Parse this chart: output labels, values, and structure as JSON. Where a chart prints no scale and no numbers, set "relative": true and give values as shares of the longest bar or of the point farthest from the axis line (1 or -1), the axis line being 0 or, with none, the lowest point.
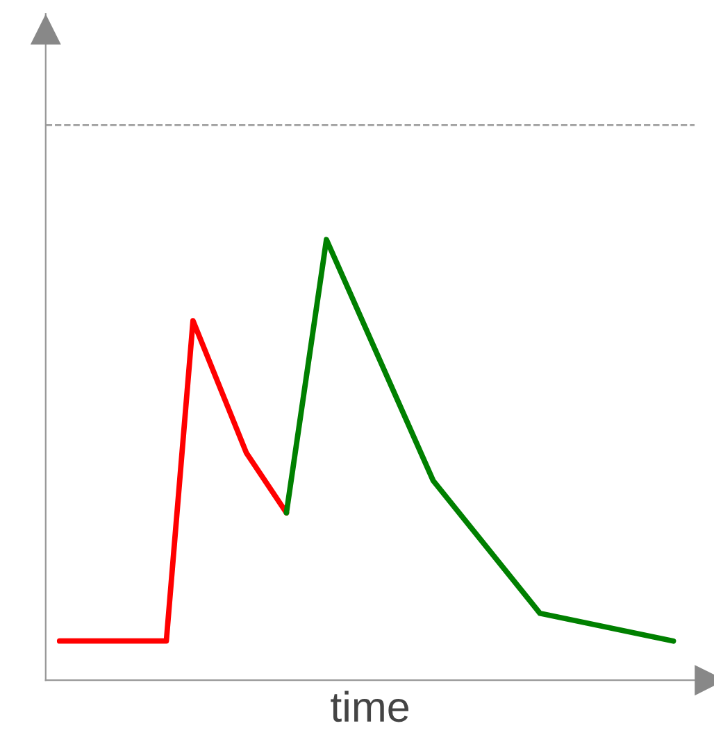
{
  "chart_data": {
    "type": "line",
    "xlabel": "time",
    "relative": true,
    "legend": false,
    "line_style": "solid",
    "marker": "none",
    "categories": [
      null,
      null,
      null,
      null,
      null,
      null,
      null,
      null,
      null,
      null,
      null,
      null,
      null,
      null,
      null,
      null,
      null,
      null,
      null,
      null,
      null,
      null,
      null,
      null,
      null,
      null,
      null,
      null,
      null,
      null,
      null,
      null,
      null,
      null,
      null,
      null,
      null,
      null,
      null,
      null,
      null,
      null,
      null,
      null,
      null,
      null,
      null
    ],
    "series": [
      {
        "color": "#ff0000",
        "values": [
          0.089,
          null,
          null,
          null,
          null,
          null,
          null,
          null,
          0.089,
          null,
          0.816,
          null,
          null,
          null,
          0.516,
          null,
          null,
          0.38,
          null,
          null,
          null,
          null,
          null,
          null,
          null,
          null,
          null,
          null,
          null,
          null,
          null,
          null,
          null,
          null,
          null,
          null,
          null,
          null,
          null,
          null,
          null,
          null,
          null,
          null,
          null,
          null,
          null
        ]
      },
      {
        "color": "#008000",
        "values": [
          null,
          null,
          null,
          null,
          null,
          null,
          null,
          null,
          null,
          null,
          null,
          null,
          null,
          null,
          null,
          null,
          null,
          0.38,
          null,
          null,
          1,
          null,
          null,
          null,
          null,
          null,
          null,
          null,
          0.453,
          null,
          null,
          null,
          null,
          null,
          null,
          null,
          0.152,
          null,
          null,
          null,
          null,
          null,
          null,
          null,
          null,
          null,
          0.089
        ]
      }
    ],
    "ref_lines": [
      {
        "axis": "y",
        "value": 1.26,
        "color": "#999999",
        "line_style": "dashed"
      }
    ]
  }
}
